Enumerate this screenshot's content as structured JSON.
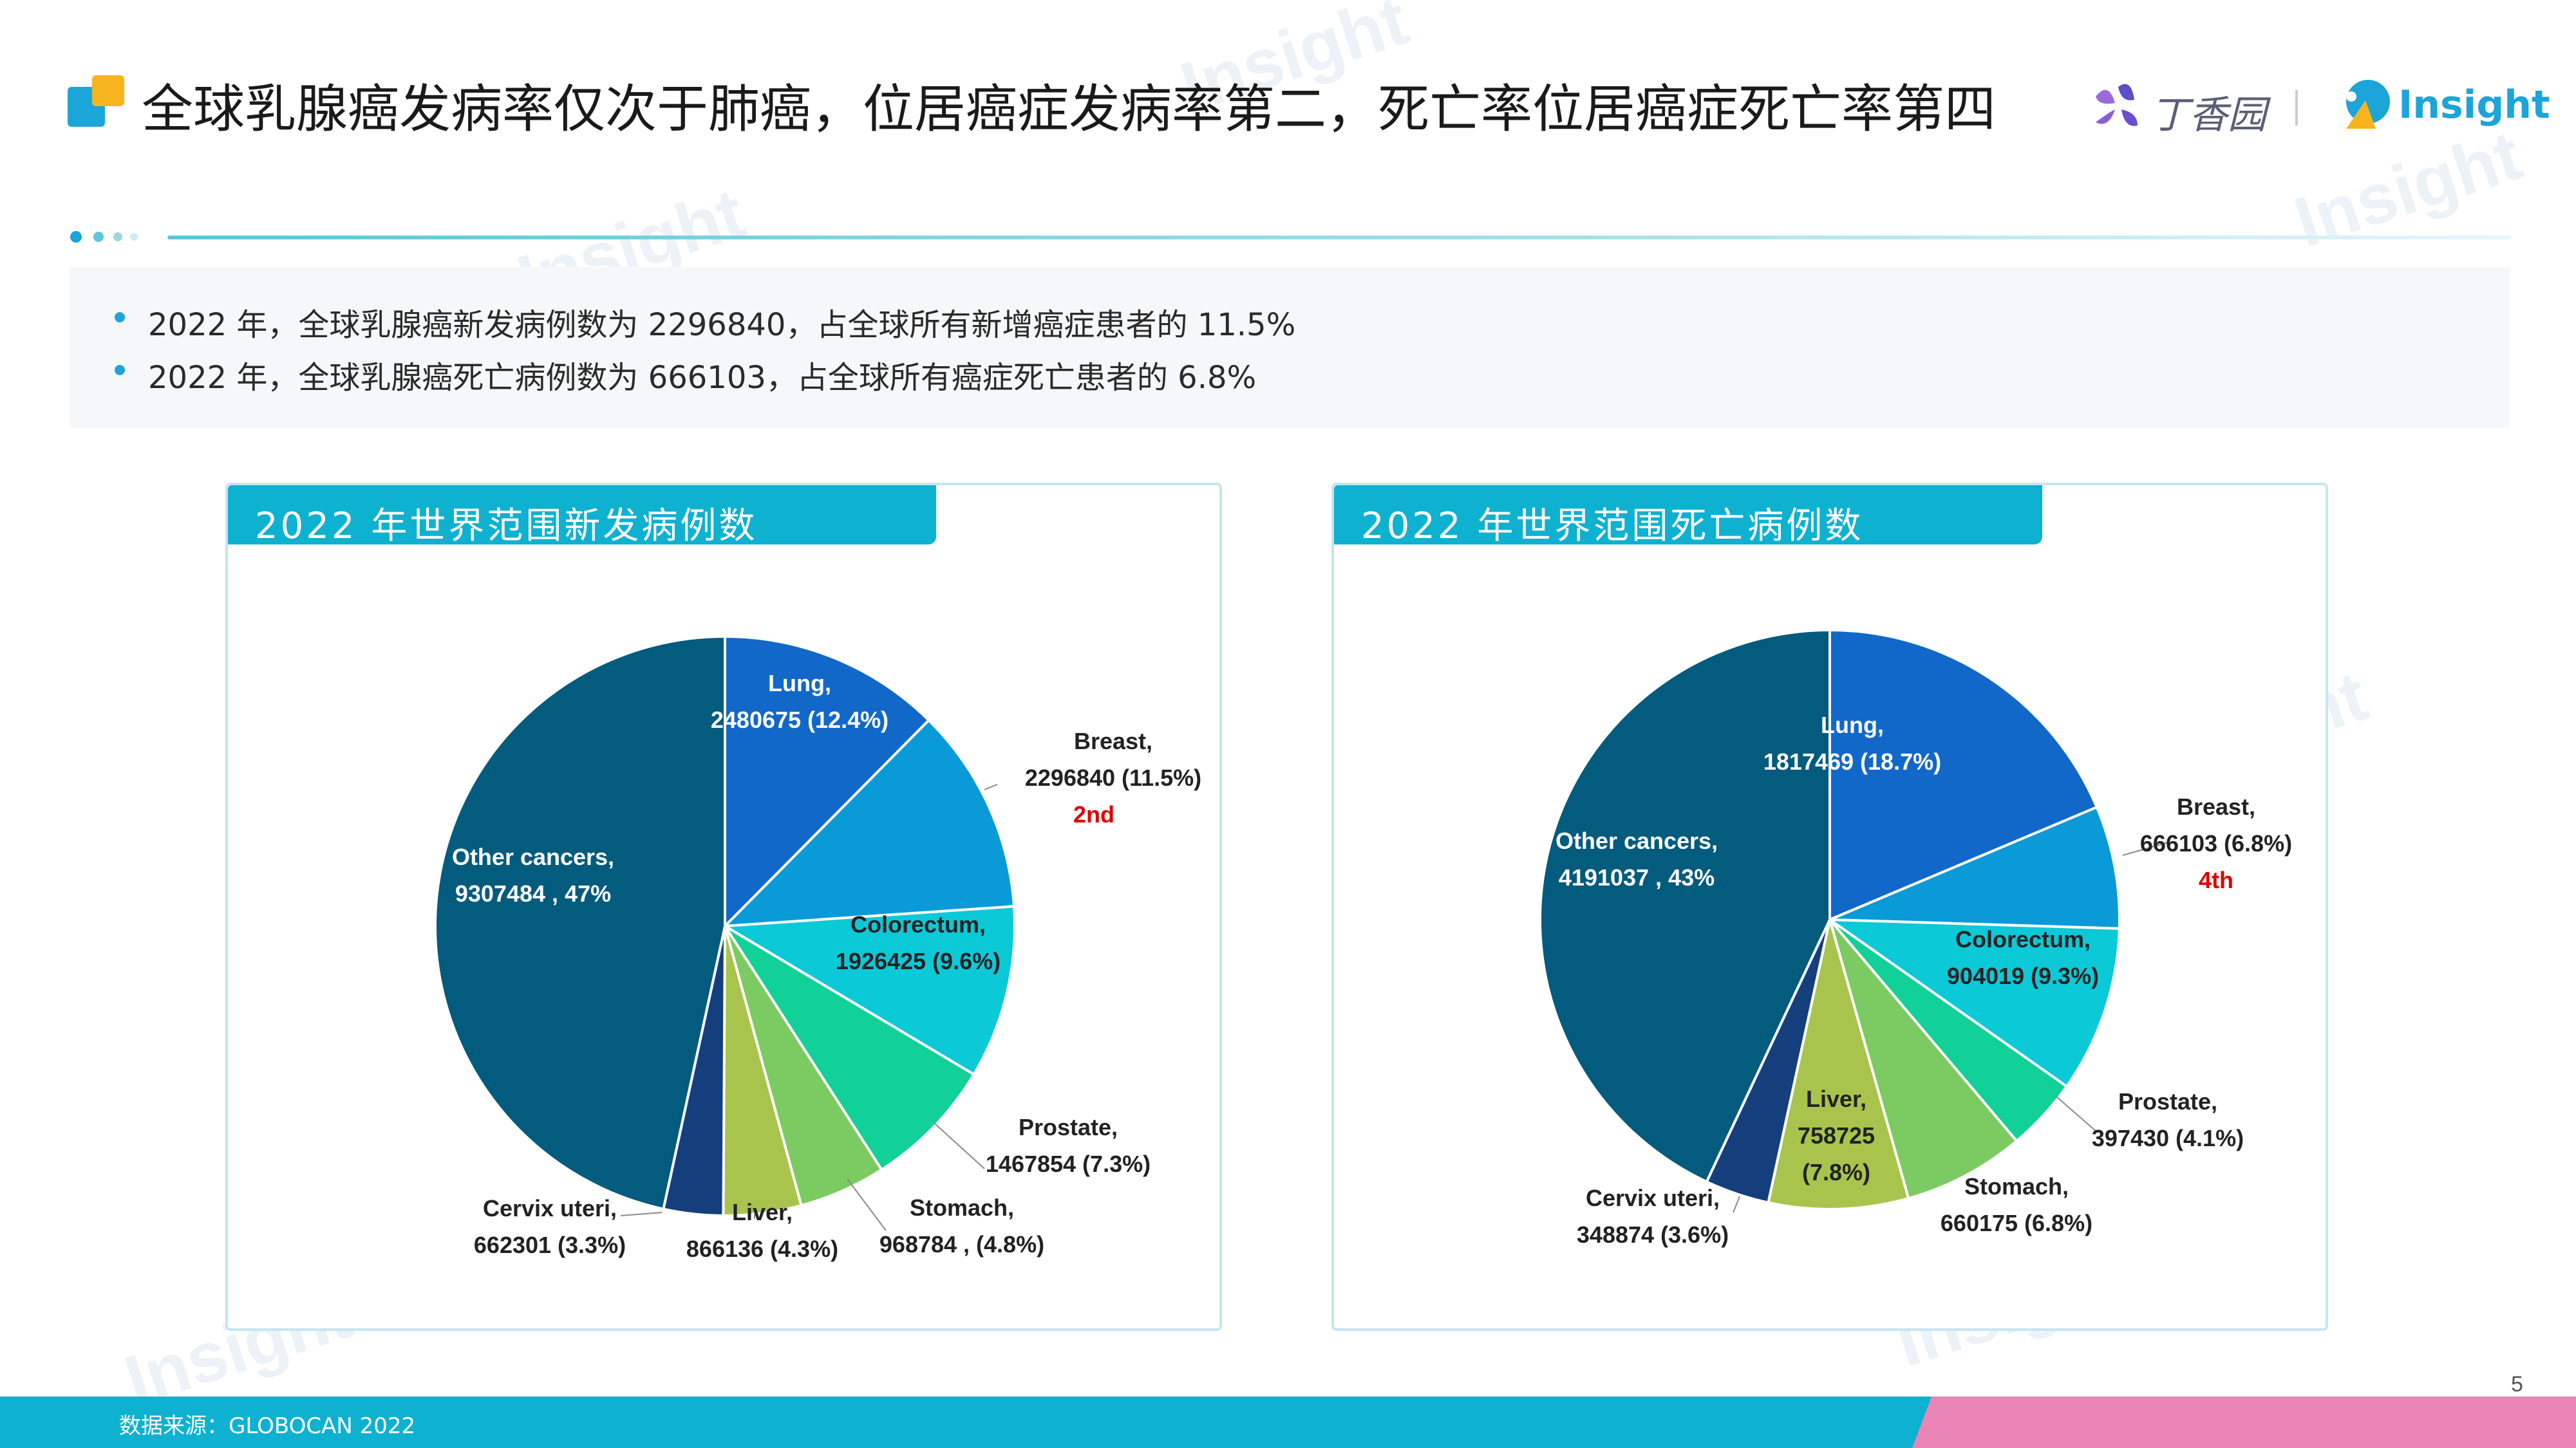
{
  "header": {
    "title": "全球乳腺癌发病率仅次于肺癌，位居癌症发病率第二，死亡率位居癌症死亡率第四",
    "brand_dxy": "丁香园",
    "brand_insight": "Insight"
  },
  "summary": {
    "bullets": [
      "2022 年，全球乳腺癌新发病例数为 2296840，占全球所有新增癌症患者的 11.5%",
      "2022 年，全球乳腺癌死亡病例数为 666103，占全球所有癌症死亡患者的 6.8%"
    ]
  },
  "panels": {
    "incidence_title": "2022 年世界范围新发病例数",
    "mortality_title": "2022 年世界范围死亡病例数"
  },
  "watermark": "Insight",
  "colors": {
    "accent": "#0fb1d0",
    "highlight": "#e00000",
    "footer_pink": "#e985b4",
    "slices": [
      "#1168c9",
      "#0a9ad8",
      "#0cc9d8",
      "#11d098",
      "#7bcb62",
      "#a9c44d",
      "#153f7c",
      "#035b7d"
    ]
  },
  "chart_data": [
    {
      "type": "pie",
      "title": "2022 年世界范围新发病例数",
      "slices": [
        {
          "name": "Lung",
          "value": 2480675,
          "percent": 12.4,
          "lines": [
            "Lung,",
            "2480675 (12.4%)"
          ]
        },
        {
          "name": "Breast",
          "value": 2296840,
          "percent": 11.5,
          "lines": [
            "Breast,",
            "2296840 (11.5%)"
          ],
          "rank": "2nd"
        },
        {
          "name": "Colorectum",
          "value": 1926425,
          "percent": 9.6,
          "lines": [
            "Colorectum,",
            "1926425 (9.6%)"
          ]
        },
        {
          "name": "Prostate",
          "value": 1467854,
          "percent": 7.3,
          "lines": [
            "Prostate,",
            "1467854 (7.3%)"
          ]
        },
        {
          "name": "Stomach",
          "value": 968784,
          "percent": 4.8,
          "lines": [
            "Stomach,",
            "968784 , (4.8%)"
          ]
        },
        {
          "name": "Liver",
          "value": 866136,
          "percent": 4.3,
          "lines": [
            "Liver,",
            "866136 (4.3%)"
          ]
        },
        {
          "name": "Cervix uteri",
          "value": 662301,
          "percent": 3.3,
          "lines": [
            "Cervix uteri,",
            "662301 (3.3%)"
          ]
        },
        {
          "name": "Other cancers",
          "value": 9307484,
          "percent": 47,
          "lines": [
            "Other cancers,",
            "9307484 , 47%"
          ]
        }
      ]
    },
    {
      "type": "pie",
      "title": "2022 年世界范围死亡病例数",
      "slices": [
        {
          "name": "Lung",
          "value": 1817469,
          "percent": 18.7,
          "lines": [
            "Lung,",
            "1817469 (18.7%)"
          ]
        },
        {
          "name": "Breast",
          "value": 666103,
          "percent": 6.8,
          "lines": [
            "Breast,",
            "666103 (6.8%)"
          ],
          "rank": "4th"
        },
        {
          "name": "Colorectum",
          "value": 904019,
          "percent": 9.3,
          "lines": [
            "Colorectum,",
            "904019 (9.3%)"
          ]
        },
        {
          "name": "Prostate",
          "value": 397430,
          "percent": 4.1,
          "lines": [
            "Prostate,",
            "397430 (4.1%)"
          ]
        },
        {
          "name": "Stomach",
          "value": 660175,
          "percent": 6.8,
          "lines": [
            "Stomach,",
            "660175 (6.8%)"
          ]
        },
        {
          "name": "Liver",
          "value": 758725,
          "percent": 7.8,
          "lines": [
            "Liver,",
            "758725",
            "(7.8%)"
          ]
        },
        {
          "name": "Cervix uteri",
          "value": 348874,
          "percent": 3.6,
          "lines": [
            "Cervix uteri,",
            "348874 (3.6%)"
          ]
        },
        {
          "name": "Other cancers",
          "value": 4191037,
          "percent": 43,
          "lines": [
            "Other cancers,",
            "4191037 , 43%"
          ]
        }
      ]
    }
  ],
  "footer": {
    "source": "数据来源：GLOBOCAN 2022",
    "page": "5"
  }
}
